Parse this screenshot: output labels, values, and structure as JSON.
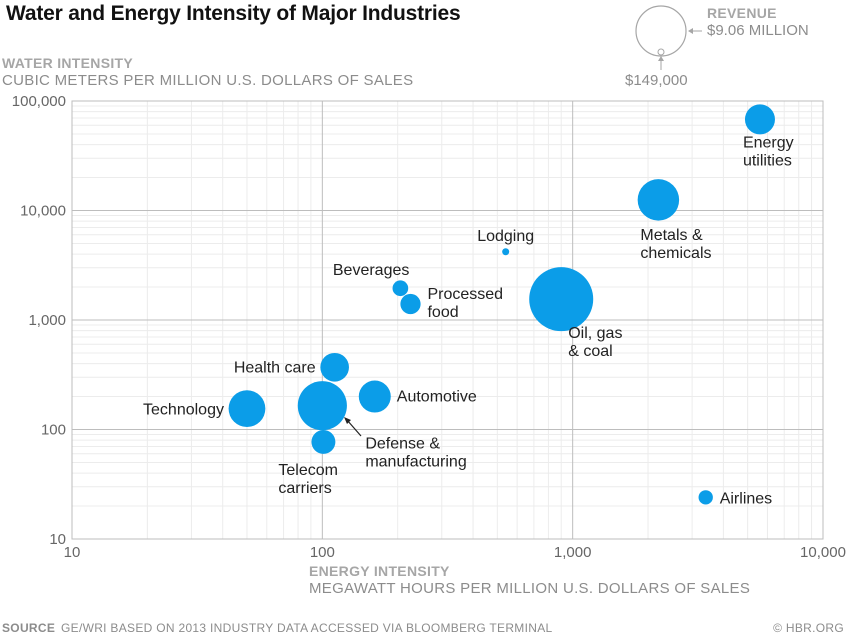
{
  "chart_data": {
    "type": "scatter",
    "title": "Water and Energy Intensity of Major Industries",
    "xlabel": "ENERGY INTENSITY",
    "xlabel_sub": "MEGAWATT HOURS PER MILLION U.S. DOLLARS OF SALES",
    "ylabel": "WATER INTENSITY",
    "ylabel_sub": "CUBIC METERS PER MILLION U.S. DOLLARS OF SALES",
    "xscale": "log",
    "yscale": "log",
    "xlim": [
      10,
      10000
    ],
    "ylim": [
      10,
      100000
    ],
    "x_ticks": [
      10,
      100,
      1000,
      10000
    ],
    "x_tick_labels": [
      "10",
      "100",
      "1,000",
      "10,000"
    ],
    "y_ticks": [
      10,
      100,
      1000,
      10000,
      100000
    ],
    "y_tick_labels": [
      "10",
      "100",
      "1,000",
      "10,000",
      "100,000"
    ],
    "grid": true,
    "size_legend": {
      "title": "REVENUE",
      "max_label": "$9.06 MILLION",
      "min_label": "$149,000",
      "max_value": 9.06,
      "min_value": 0.149,
      "unit": "million USD",
      "placement": "top-right"
    },
    "points": [
      {
        "label": "Energy utilities",
        "x": 5600,
        "y": 68000,
        "revenue_rel": 0.22
      },
      {
        "label": "Metals & chemicals",
        "x": 2200,
        "y": 12500,
        "revenue_rel": 0.42
      },
      {
        "label": "Lodging",
        "x": 540,
        "y": 4200,
        "revenue_rel": 0.012
      },
      {
        "label": "Beverages",
        "x": 205,
        "y": 1950,
        "revenue_rel": 0.06
      },
      {
        "label": "Processed food",
        "x": 225,
        "y": 1400,
        "revenue_rel": 0.1
      },
      {
        "label": "Oil, gas & coal",
        "x": 900,
        "y": 1550,
        "revenue_rel": 1.0
      },
      {
        "label": "Health care",
        "x": 112,
        "y": 370,
        "revenue_rel": 0.2
      },
      {
        "label": "Automotive",
        "x": 162,
        "y": 200,
        "revenue_rel": 0.25
      },
      {
        "label": "Technology",
        "x": 50,
        "y": 155,
        "revenue_rel": 0.33
      },
      {
        "label": "Defense & manufacturing",
        "x": 100,
        "y": 165,
        "revenue_rel": 0.59
      },
      {
        "label": "Telecom carriers",
        "x": 101,
        "y": 77,
        "revenue_rel": 0.14
      },
      {
        "label": "Airlines",
        "x": 3400,
        "y": 24,
        "revenue_rel": 0.05
      }
    ],
    "bubble_color": "#0b9de8"
  },
  "source": {
    "label": "SOURCE",
    "text": "GE/WRI BASED ON 2013 INDUSTRY DATA ACCESSED VIA BLOOMBERG TERMINAL"
  },
  "credit": "© HBR.ORG"
}
